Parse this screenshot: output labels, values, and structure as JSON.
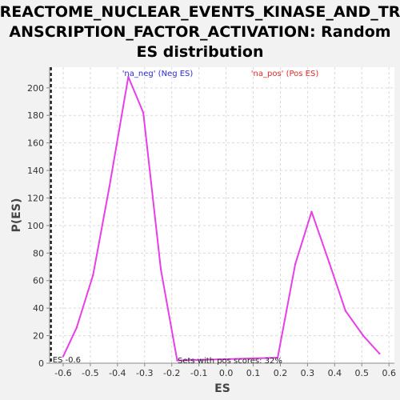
{
  "chart_data": {
    "type": "line",
    "title_lines": [
      "REACTOME_NUCLEAR_EVENTS_KINASE_AND_TR",
      "ANSCRIPTION_FACTOR_ACTIVATION: Random",
      "ES distribution"
    ],
    "xlabel": "ES",
    "ylabel": "P(ES)",
    "xlim": [
      -0.65,
      0.62
    ],
    "ylim": [
      0,
      215
    ],
    "x_ticks": [
      -0.6,
      -0.5,
      -0.4,
      -0.3,
      -0.2,
      -0.1,
      0.0,
      0.1,
      0.2,
      0.3,
      0.4,
      0.5,
      0.6
    ],
    "x_tick_labels": [
      "-0.6",
      "-0.5",
      "-0.4",
      "-0.3",
      "-0.2",
      "-0.1",
      "0.0",
      "0.1",
      "0.2",
      "0.3",
      "0.4",
      "0.5",
      "0.6"
    ],
    "y_ticks": [
      0,
      20,
      40,
      60,
      80,
      100,
      120,
      140,
      160,
      180,
      200
    ],
    "y_tick_labels": [
      "0",
      "20",
      "40",
      "60",
      "80",
      "100",
      "120",
      "140",
      "160",
      "180",
      "200"
    ],
    "grid": true,
    "series": [
      {
        "color": "#e83ee8",
        "x": [
          -0.6,
          -0.55,
          -0.49,
          -0.43,
          -0.36,
          -0.305,
          -0.24,
          -0.18,
          0.19,
          0.255,
          0.315,
          0.38,
          0.44,
          0.505,
          0.565
        ],
        "y": [
          5,
          26,
          64,
          128,
          208,
          182,
          68,
          2,
          4,
          72,
          110,
          73,
          38,
          20,
          7
        ]
      }
    ],
    "es_line": {
      "x": -0.645,
      "label": "ES -0.6"
    },
    "legend_neg": "'na_neg' (Neg ES)",
    "legend_pos": "'na_pos' (Pos ES)",
    "annotation": "Sets with pos scores: 32%"
  }
}
